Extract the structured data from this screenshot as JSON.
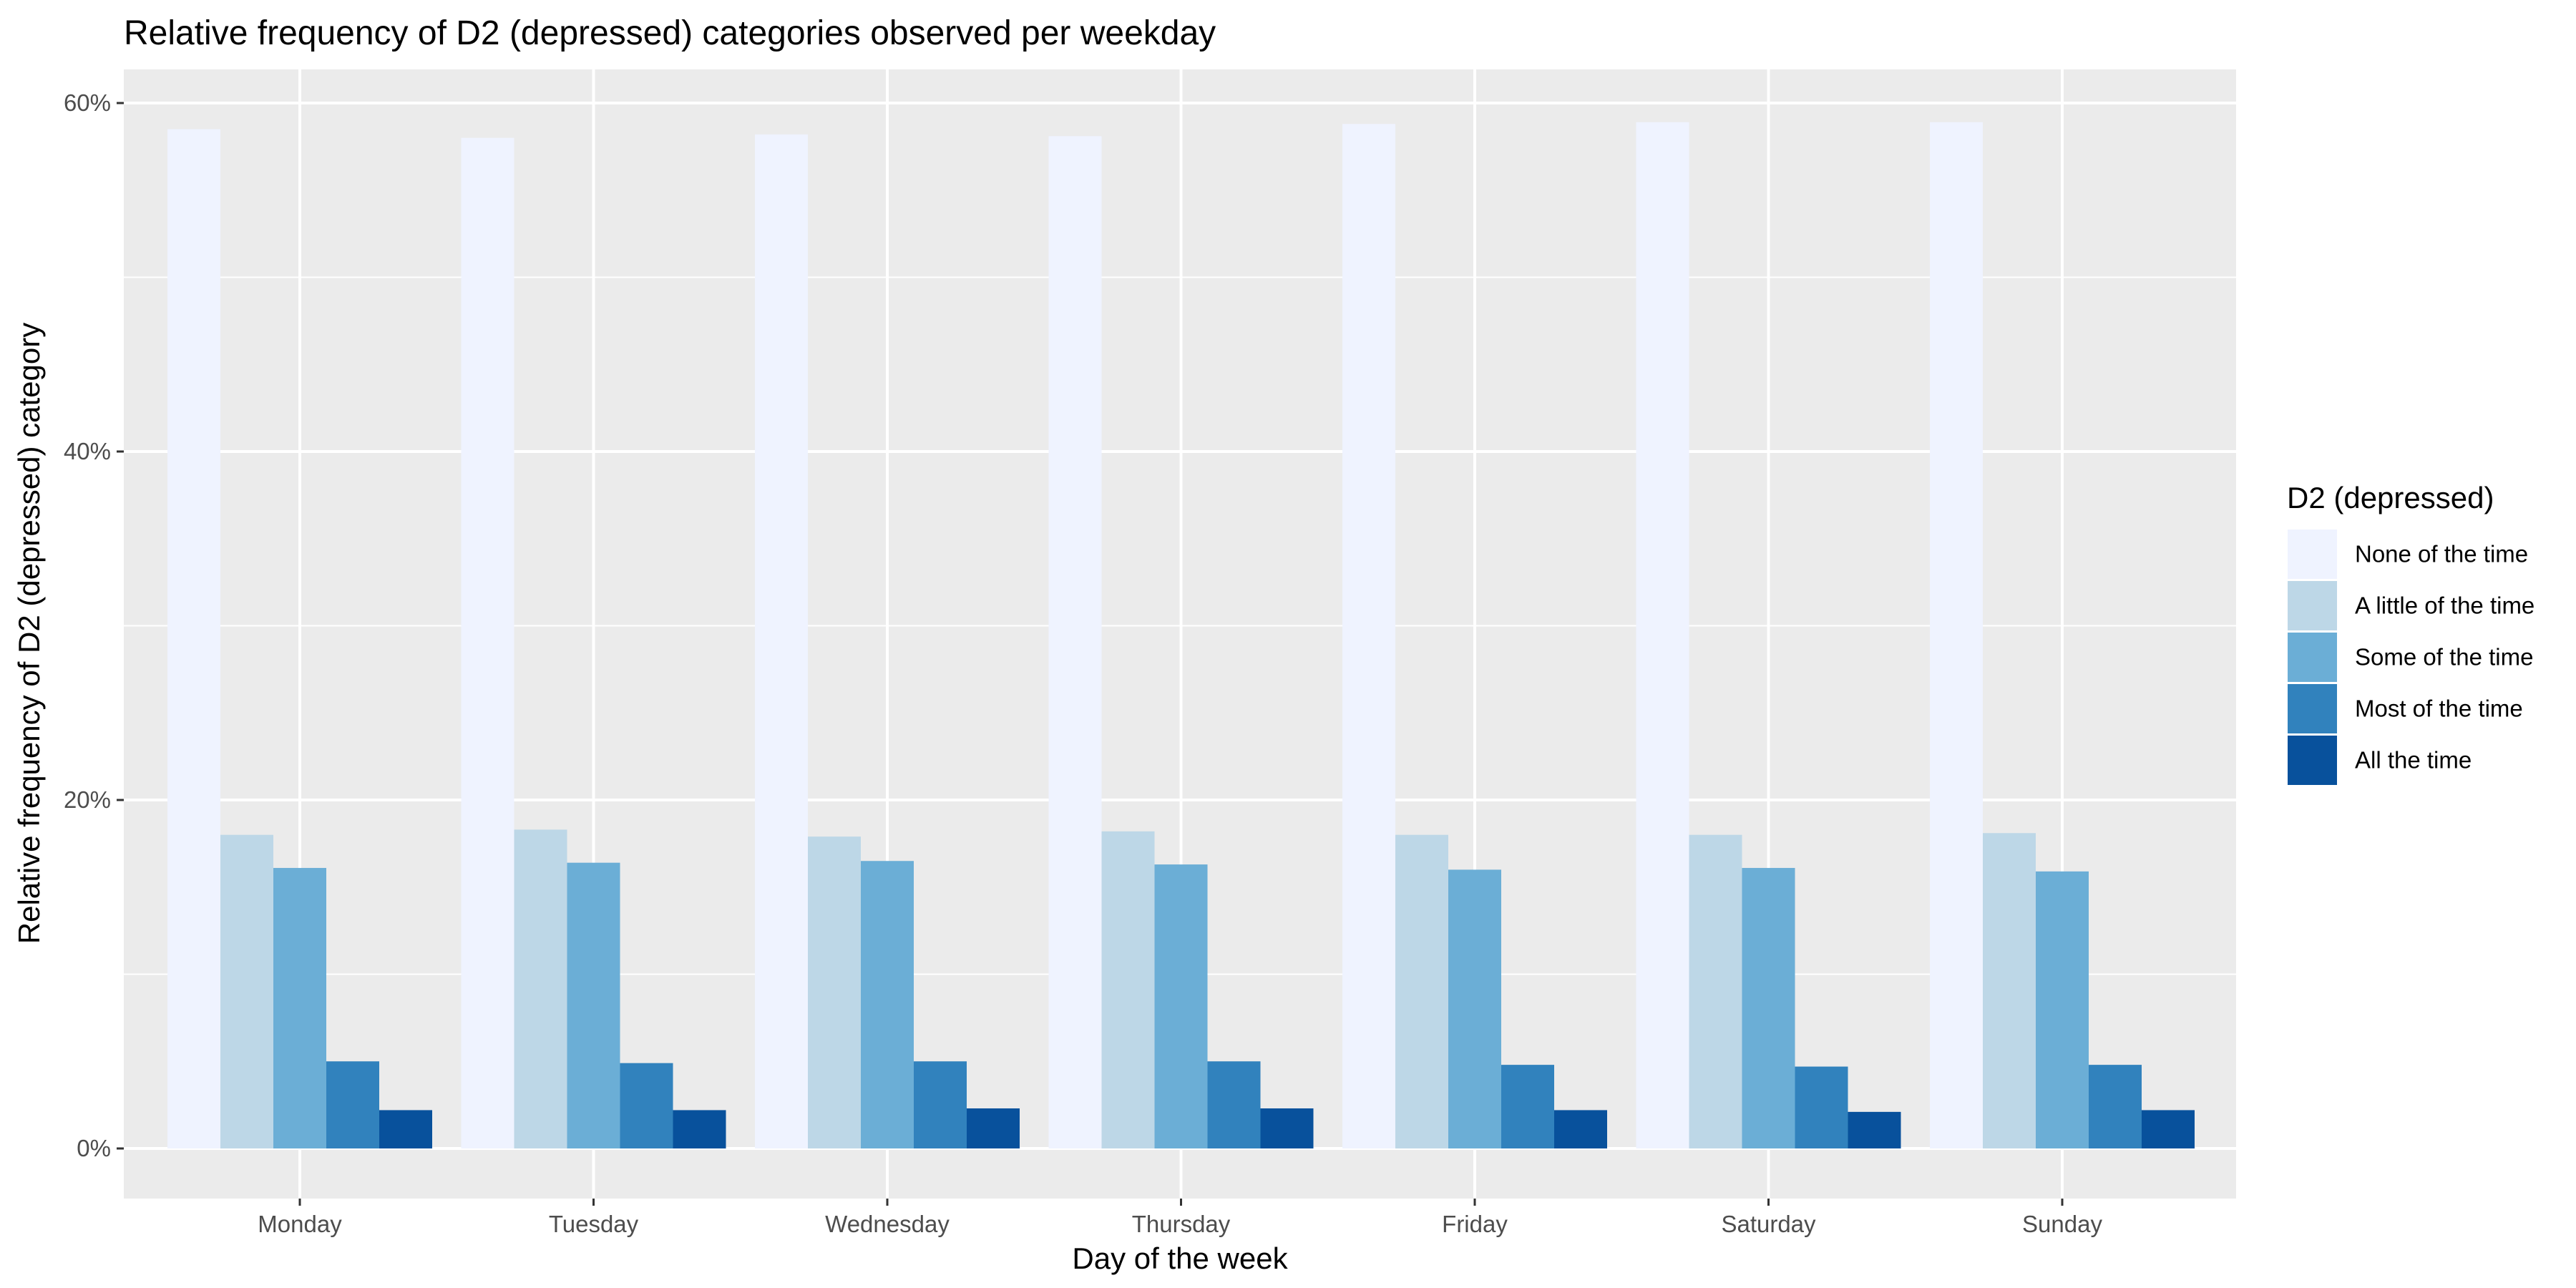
{
  "chart_data": {
    "type": "bar",
    "title": "Relative frequency of D2 (depressed) categories observed per weekday",
    "xlabel": "Day of the week",
    "ylabel": "Relative frequency of D2 (depressed) category",
    "categories": [
      "Monday",
      "Tuesday",
      "Wednesday",
      "Thursday",
      "Friday",
      "Saturday",
      "Sunday"
    ],
    "ylim": [
      0,
      0.6
    ],
    "yticks": [
      0,
      0.2,
      0.4,
      0.6
    ],
    "ytick_labels": [
      "0%",
      "20%",
      "40%",
      "60%"
    ],
    "grid": true,
    "legend": {
      "title": "D2 (depressed)",
      "placement": "right"
    },
    "series": [
      {
        "name": "None of the time",
        "color": "#eff3ff",
        "values": [
          0.585,
          0.58,
          0.582,
          0.581,
          0.588,
          0.589,
          0.589
        ]
      },
      {
        "name": "A little of the time",
        "color": "#bdd7e7",
        "values": [
          0.18,
          0.183,
          0.179,
          0.182,
          0.18,
          0.18,
          0.181
        ]
      },
      {
        "name": "Some of the time",
        "color": "#6baed6",
        "values": [
          0.161,
          0.164,
          0.165,
          0.163,
          0.16,
          0.161,
          0.159
        ]
      },
      {
        "name": "Most of the time",
        "color": "#3182bd",
        "values": [
          0.05,
          0.049,
          0.05,
          0.05,
          0.048,
          0.047,
          0.048
        ]
      },
      {
        "name": "All the time",
        "color": "#08519c",
        "values": [
          0.022,
          0.022,
          0.023,
          0.023,
          0.022,
          0.021,
          0.022
        ]
      }
    ]
  }
}
